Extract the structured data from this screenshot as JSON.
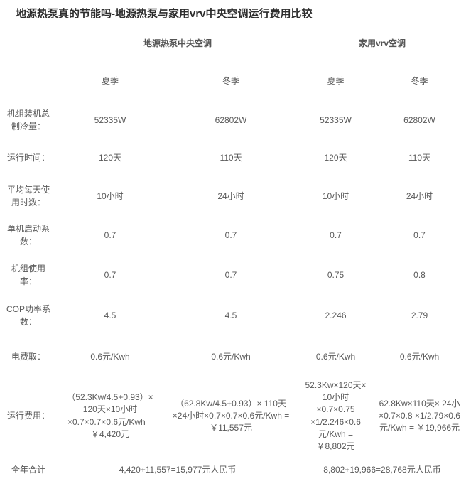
{
  "page": {
    "title": "地源热泵真的节能吗-地源热泵与家用vrv中央空调运行费用比较",
    "colors": {
      "background": "#ffffff",
      "title_text": "#2d2d2d",
      "body_text": "#595959",
      "row_border": "#ececec"
    }
  },
  "table": {
    "group_headers": [
      {
        "label": "地源热泵中央空调",
        "span": 2
      },
      {
        "label": "家用vrv空调",
        "span": 2
      }
    ],
    "season_headers": [
      "夏季",
      "冬季",
      "夏季",
      "冬季"
    ],
    "rows": [
      {
        "label": "机组装机总制冷量：",
        "values": [
          "52335W",
          "62802W",
          "52335W",
          "62802W"
        ]
      },
      {
        "label": "运行时间：",
        "values": [
          "120天",
          "110天",
          "120天",
          "110天"
        ]
      },
      {
        "label": "平均每天使用时数：",
        "values": [
          "10小时",
          "24小时",
          "10小时",
          "24小时"
        ]
      },
      {
        "label": "单机启动系数：",
        "values": [
          "0.7",
          "0.7",
          "0.7",
          "0.7"
        ]
      },
      {
        "label": "机组使用率：",
        "values": [
          "0.7",
          "0.7",
          "0.75",
          "0.8"
        ]
      },
      {
        "label": "COP功率系数：",
        "values": [
          "4.5",
          "4.5",
          "2.246",
          "2.79"
        ]
      },
      {
        "label": "电费取：",
        "values": [
          "0.6元/Kwh",
          "0.6元/Kwh",
          "0.6元/Kwh",
          "0.6元/Kwh"
        ]
      },
      {
        "label": "运行费用：",
        "values": [
          "（52.3Kw/4.5+0.93）× 120天×10小时×0.7×0.7×0.6元/Kwh = ￥4,420元",
          "（62.8Kw/4.5+0.93）× 110天×24小时×0.7×0.7×0.6元/Kwh = ￥11,557元",
          "52.3Kw×120天× 10小时×0.7×0.75 ×1/2.246×0.6元/Kwh = ￥8,802元",
          "62.8Kw×110天× 24小×0.7×0.8 ×1/2.79×0.6元/Kwh = ￥19,966元"
        ]
      }
    ],
    "total_row": {
      "label": "全年合计",
      "values": [
        "4,420+11,557=15,977元人民币",
        "8,802+19,966=28,768元人民币"
      ],
      "span": 2
    }
  }
}
